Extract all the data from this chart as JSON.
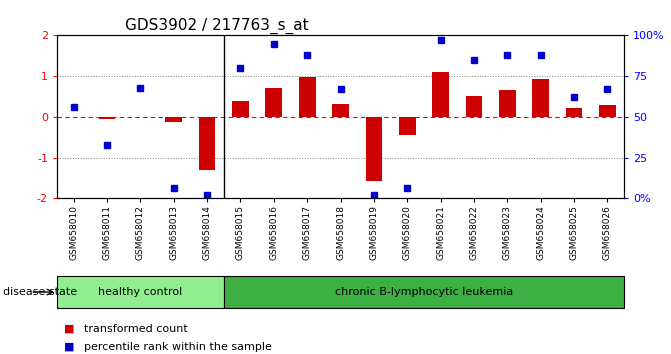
{
  "title": "GDS3902 / 217763_s_at",
  "samples": [
    "GSM658010",
    "GSM658011",
    "GSM658012",
    "GSM658013",
    "GSM658014",
    "GSM658015",
    "GSM658016",
    "GSM658017",
    "GSM658018",
    "GSM658019",
    "GSM658020",
    "GSM658021",
    "GSM658022",
    "GSM658023",
    "GSM658024",
    "GSM658025",
    "GSM658026"
  ],
  "bar_values": [
    0.0,
    -0.05,
    0.0,
    -0.13,
    -1.3,
    0.38,
    0.72,
    0.97,
    0.32,
    -1.58,
    -0.45,
    1.1,
    0.52,
    0.67,
    0.92,
    0.22,
    0.28
  ],
  "dot_values": [
    56,
    33,
    68,
    6,
    2,
    80,
    95,
    88,
    67,
    2,
    6,
    97,
    85,
    88,
    88,
    62,
    67
  ],
  "bar_color": "#cc0000",
  "dot_color": "#0000cc",
  "ylim_left": [
    -2,
    2
  ],
  "ylim_right": [
    0,
    100
  ],
  "yticks_left": [
    -2,
    -1,
    0,
    1,
    2
  ],
  "yticks_right": [
    0,
    25,
    50,
    75,
    100
  ],
  "ytick_labels_left": [
    "-2",
    "-1",
    "0",
    "1",
    "2"
  ],
  "ytick_labels_right": [
    "0%",
    "25",
    "50",
    "75",
    "100%"
  ],
  "healthy_count": 5,
  "healthy_label": "healthy control",
  "leukemia_label": "chronic B-lymphocytic leukemia",
  "disease_label": "disease state",
  "legend_bar": "transformed count",
  "legend_dot": "percentile rank within the sample",
  "healthy_color": "#90ee90",
  "leukemia_color": "#3cb043",
  "background_color": "#ffffff",
  "bar_width": 0.5,
  "dot_marker_size": 5
}
